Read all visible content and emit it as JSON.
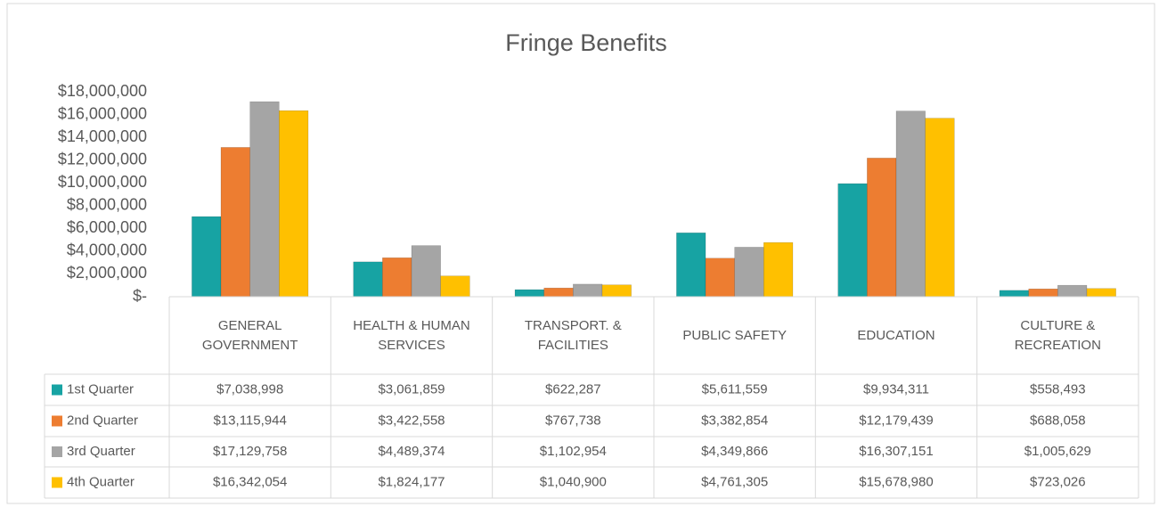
{
  "chart_data": {
    "type": "bar",
    "title": "Fringe Benefits",
    "categories": [
      "GENERAL GOVERNMENT",
      "HEALTH & HUMAN SERVICES",
      "TRANSPORT. & FACILITIES",
      "PUBLIC SAFETY",
      "EDUCATION",
      "CULTURE & RECREATION"
    ],
    "series": [
      {
        "name": "1st Quarter",
        "color": "#17a3a3",
        "values": [
          7038998,
          3061859,
          622287,
          5611559,
          9934311,
          558493
        ],
        "value_labels": [
          "$7,038,998",
          "$3,061,859",
          "$622,287",
          "$5,611,559",
          "$9,934,311",
          "$558,493"
        ]
      },
      {
        "name": "2nd Quarter",
        "color": "#ed7d31",
        "values": [
          13115944,
          3422558,
          767738,
          3382854,
          12179439,
          688058
        ],
        "value_labels": [
          "$13,115,944",
          "$3,422,558",
          "$767,738",
          "$3,382,854",
          "$12,179,439",
          "$688,058"
        ]
      },
      {
        "name": "3rd Quarter",
        "color": "#a5a5a5",
        "values": [
          17129758,
          4489374,
          1102954,
          4349866,
          16307151,
          1005629
        ],
        "value_labels": [
          "$17,129,758",
          "$4,489,374",
          "$1,102,954",
          "$4,349,866",
          "$16,307,151",
          "$1,005,629"
        ]
      },
      {
        "name": "4th Quarter",
        "color": "#ffc000",
        "values": [
          16342054,
          1824177,
          1040900,
          4761305,
          15678980,
          723026
        ],
        "value_labels": [
          "$16,342,054",
          "$1,824,177",
          "$1,040,900",
          "$4,761,305",
          "$15,678,980",
          "$723,026"
        ]
      }
    ],
    "ylim": [
      0,
      18000000
    ],
    "yticks": [
      {
        "value": 0,
        "label": "$-"
      },
      {
        "value": 2000000,
        "label": "$2,000,000"
      },
      {
        "value": 4000000,
        "label": "$4,000,000"
      },
      {
        "value": 6000000,
        "label": "$6,000,000"
      },
      {
        "value": 8000000,
        "label": "$8,000,000"
      },
      {
        "value": 10000000,
        "label": "$10,000,000"
      },
      {
        "value": 12000000,
        "label": "$12,000,000"
      },
      {
        "value": 14000000,
        "label": "$14,000,000"
      },
      {
        "value": 16000000,
        "label": "$16,000,000"
      },
      {
        "value": 18000000,
        "label": "$18,000,000"
      }
    ],
    "grid": false
  }
}
